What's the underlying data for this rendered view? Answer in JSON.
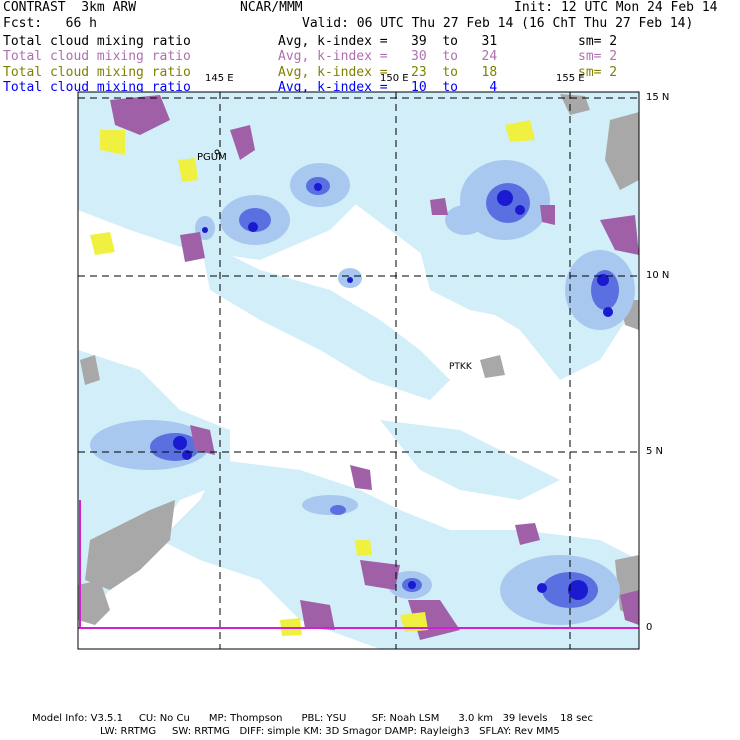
{
  "header": {
    "model": "CONTRAST  3km ARW",
    "org": "NCAR/MMM",
    "init": "Init: 12 UTC Mon 24 Feb 14",
    "fcst": "Fcst:   66 h",
    "valid": "Valid: 06 UTC Thu 27 Feb 14 (16 ChT Thu 27 Feb 14)"
  },
  "fields": [
    {
      "name": "Total cloud mixing ratio",
      "stat": "Avg, k-index =   39  to   31",
      "sm": "sm= 2",
      "color": "#000000"
    },
    {
      "name": "Total cloud mixing ratio",
      "stat": "Avg, k-index =   30  to   24",
      "sm": "sm= 2",
      "color": "#b070b0"
    },
    {
      "name": "Total cloud mixing ratio",
      "stat": "Avg, k-index =   23  to   18",
      "sm": "sm= 2",
      "color": "#808000"
    },
    {
      "name": "Total cloud mixing ratio",
      "stat": "Avg, k-index =   10  to    4",
      "sm": "",
      "color": "#0000ff"
    }
  ],
  "map": {
    "lon_labels": [
      "145 E",
      "150 E",
      "155 E"
    ],
    "lat_labels": [
      "15 N",
      "10 N",
      "5 N",
      "0"
    ],
    "stations": [
      "PGUM",
      "PTKK"
    ]
  },
  "footer": {
    "line1": "Model Info: V3.5.1     CU: No Cu      MP: Thompson      PBL: YSU        SF: Noah LSM      3.0 km   39 levels    18 sec",
    "line2": "LW: RRTMG     SW: RRTMG   DIFF: simple KM: 3D Smagor DAMP: Rayleigh3   SFLAY: Rev MM5"
  },
  "colors": {
    "cloud_light": "#d2eef8",
    "cloud_mid": "#a8c8f0",
    "cloud_dark": "#5a70e0",
    "cloud_core": "#1a1ad0",
    "ice_purple": "#a060a8",
    "ice_yellow": "#f0f040",
    "land_gray": "#a8a8a8"
  }
}
